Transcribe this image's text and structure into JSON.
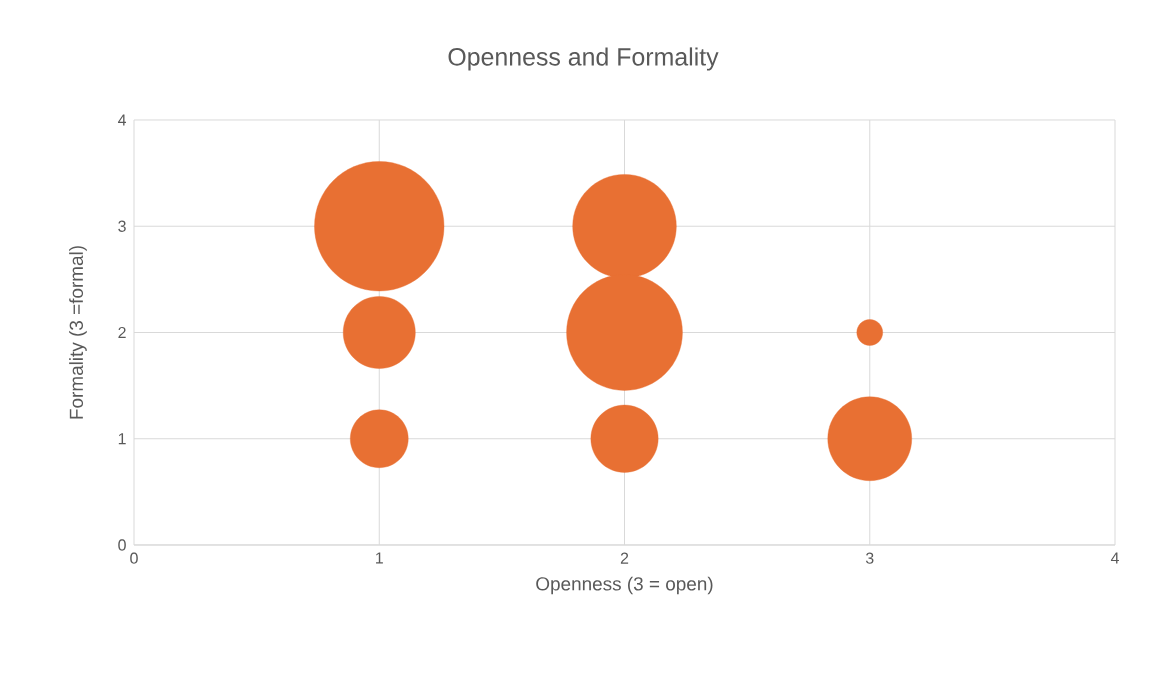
{
  "chart_data": {
    "type": "bubble",
    "title": "Openness and Formality",
    "xlabel": "Openness (3 = open)",
    "ylabel": "Formality (3 =formal)",
    "x": [
      1,
      1,
      1,
      2,
      2,
      2,
      3,
      3
    ],
    "values": [
      3,
      2,
      1,
      3,
      2,
      1,
      2,
      1
    ],
    "sizes": [
      1,
      0.31,
      0.2,
      0.64,
      0.8,
      0.27,
      0.04,
      0.42
    ],
    "color": "#e87033",
    "xlim": [
      0,
      4
    ],
    "ylim": [
      0,
      4
    ],
    "xticks": [
      0,
      1,
      2,
      3,
      4
    ],
    "yticks": [
      0,
      1,
      2,
      3,
      4
    ],
    "grid": true
  }
}
